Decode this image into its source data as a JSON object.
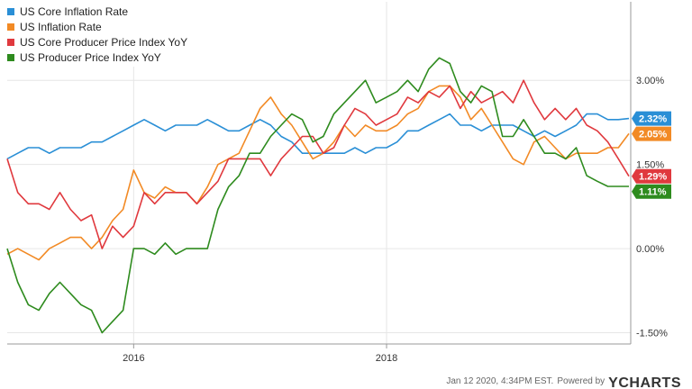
{
  "legend": {
    "items": [
      {
        "label": "US Core Inflation Rate",
        "color": "#2a8fd6"
      },
      {
        "label": "US Inflation Rate",
        "color": "#f28a25"
      },
      {
        "label": "US Core Producer Price Index YoY",
        "color": "#e0393e"
      },
      {
        "label": "US Producer Price Index YoY",
        "color": "#2e8b1e"
      }
    ]
  },
  "footer": {
    "timestamp": "Jan 12 2020, 4:34PM EST.",
    "powered_by": "Powered by",
    "brand": "YCHARTS"
  },
  "chart_data": {
    "type": "line",
    "x_start": "2015-01",
    "x_end": "2019-12",
    "x_ticks": [
      {
        "date": "2016-01",
        "label": "2016"
      },
      {
        "date": "2018-01",
        "label": "2018"
      }
    ],
    "y_ticks": [
      {
        "value": 3.0,
        "label": "3.00%"
      },
      {
        "value": 1.5,
        "label": "1.50%"
      },
      {
        "value": 0.0,
        "label": "0.00%"
      },
      {
        "value": -1.5,
        "label": "-1.50%"
      }
    ],
    "ylim": [
      -1.7,
      4.4
    ],
    "grid": true,
    "legend_position": "top-left",
    "series": [
      {
        "name": "US Core Inflation Rate",
        "color": "#2a8fd6",
        "end_label": "2.32%",
        "values": [
          1.6,
          1.7,
          1.8,
          1.8,
          1.7,
          1.8,
          1.8,
          1.8,
          1.9,
          1.9,
          2.0,
          2.1,
          2.2,
          2.3,
          2.2,
          2.1,
          2.2,
          2.2,
          2.2,
          2.3,
          2.2,
          2.1,
          2.1,
          2.2,
          2.3,
          2.2,
          2.0,
          1.9,
          1.7,
          1.7,
          1.7,
          1.7,
          1.7,
          1.8,
          1.7,
          1.8,
          1.8,
          1.9,
          2.1,
          2.1,
          2.2,
          2.3,
          2.4,
          2.2,
          2.2,
          2.1,
          2.2,
          2.2,
          2.2,
          2.1,
          2.0,
          2.1,
          2.0,
          2.1,
          2.2,
          2.4,
          2.4,
          2.3,
          2.3,
          2.32
        ]
      },
      {
        "name": "US Inflation Rate",
        "color": "#f28a25",
        "end_label": "2.05%",
        "values": [
          -0.1,
          0.0,
          -0.1,
          -0.2,
          0.0,
          0.1,
          0.2,
          0.2,
          0.0,
          0.2,
          0.5,
          0.7,
          1.4,
          1.0,
          0.9,
          1.1,
          1.0,
          1.0,
          0.8,
          1.1,
          1.5,
          1.6,
          1.7,
          2.1,
          2.5,
          2.7,
          2.4,
          2.2,
          1.9,
          1.6,
          1.7,
          1.9,
          2.2,
          2.0,
          2.2,
          2.1,
          2.1,
          2.2,
          2.4,
          2.5,
          2.8,
          2.9,
          2.9,
          2.7,
          2.3,
          2.5,
          2.2,
          1.9,
          1.6,
          1.5,
          1.9,
          2.0,
          1.8,
          1.6,
          1.7,
          1.7,
          1.7,
          1.8,
          1.8,
          2.05
        ]
      },
      {
        "name": "US Core Producer Price Index YoY",
        "color": "#e0393e",
        "end_label": "1.29%",
        "values": [
          1.6,
          1.0,
          0.8,
          0.8,
          0.7,
          1.0,
          0.7,
          0.5,
          0.6,
          0.0,
          0.4,
          0.2,
          0.4,
          1.0,
          0.8,
          1.0,
          1.0,
          1.0,
          0.8,
          1.0,
          1.2,
          1.6,
          1.6,
          1.6,
          1.6,
          1.3,
          1.6,
          1.8,
          2.0,
          2.0,
          1.7,
          1.8,
          2.2,
          2.5,
          2.4,
          2.2,
          2.3,
          2.4,
          2.7,
          2.6,
          2.8,
          2.7,
          2.9,
          2.5,
          2.8,
          2.6,
          2.7,
          2.8,
          2.6,
          3.0,
          2.6,
          2.3,
          2.5,
          2.3,
          2.5,
          2.2,
          2.1,
          1.9,
          1.6,
          1.29
        ]
      },
      {
        "name": "US Producer Price Index YoY",
        "color": "#2e8b1e",
        "end_label": "1.11%",
        "values": [
          0.0,
          -0.6,
          -1.0,
          -1.1,
          -0.8,
          -0.6,
          -0.8,
          -1.0,
          -1.1,
          -1.5,
          -1.3,
          -1.1,
          0.0,
          0.0,
          -0.1,
          0.1,
          -0.1,
          0.0,
          0.0,
          0.0,
          0.7,
          1.1,
          1.3,
          1.7,
          1.7,
          2.0,
          2.2,
          2.4,
          2.3,
          1.9,
          2.0,
          2.4,
          2.6,
          2.8,
          3.0,
          2.6,
          2.7,
          2.8,
          3.0,
          2.8,
          3.2,
          3.4,
          3.3,
          2.8,
          2.6,
          2.9,
          2.8,
          2.0,
          2.0,
          2.3,
          2.0,
          1.7,
          1.7,
          1.6,
          1.8,
          1.3,
          1.2,
          1.11,
          1.11,
          1.11
        ]
      }
    ]
  }
}
